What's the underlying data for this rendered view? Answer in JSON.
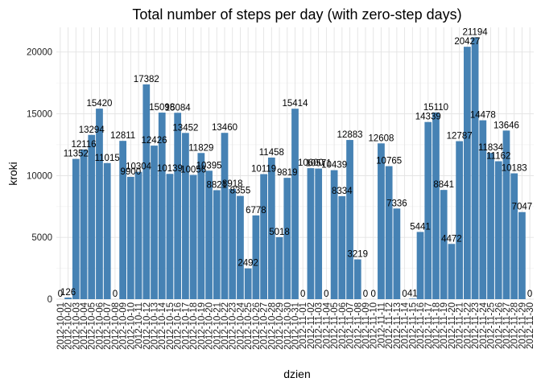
{
  "chart_data": {
    "type": "bar",
    "title": "Total number of steps per day (with zero-step days)",
    "xlabel": "dzien",
    "ylabel": "kroki",
    "ylim": [
      0,
      22000
    ],
    "yticks": [
      0,
      5000,
      10000,
      15000,
      20000
    ],
    "grid": true,
    "bar_color": "#4682b4",
    "categories": [
      "2012-10-01",
      "2012-10-02",
      "2012-10-03",
      "2012-10-04",
      "2012-10-05",
      "2012-10-06",
      "2012-10-07",
      "2012-10-08",
      "2012-10-09",
      "2012-10-10",
      "2012-10-11",
      "2012-10-12",
      "2012-10-13",
      "2012-10-14",
      "2012-10-15",
      "2012-10-16",
      "2012-10-17",
      "2012-10-18",
      "2012-10-19",
      "2012-10-20",
      "2012-10-21",
      "2012-10-22",
      "2012-10-23",
      "2012-10-24",
      "2012-10-25",
      "2012-10-26",
      "2012-10-27",
      "2012-10-28",
      "2012-10-29",
      "2012-10-30",
      "2012-10-31",
      "2012-11-01",
      "2012-11-02",
      "2012-11-03",
      "2012-11-04",
      "2012-11-05",
      "2012-11-06",
      "2012-11-07",
      "2012-11-08",
      "2012-11-09",
      "2012-11-10",
      "2012-11-11",
      "2012-11-12",
      "2012-11-13",
      "2012-11-14",
      "2012-11-15",
      "2012-11-16",
      "2012-11-17",
      "2012-11-18",
      "2012-11-19",
      "2012-11-20",
      "2012-11-21",
      "2012-11-22",
      "2012-11-23",
      "2012-11-24",
      "2012-11-25",
      "2012-11-26",
      "2012-11-27",
      "2012-11-28",
      "2012-11-29",
      "2012-11-30"
    ],
    "values": [
      0,
      126,
      11352,
      12116,
      13294,
      15420,
      11015,
      0,
      12811,
      9900,
      10304,
      17382,
      12426,
      15098,
      10139,
      15084,
      13452,
      10056,
      11829,
      10395,
      8821,
      13460,
      8918,
      8355,
      2492,
      6778,
      10119,
      11458,
      5018,
      9819,
      15414,
      0,
      10600,
      10571,
      0,
      10439,
      8334,
      12883,
      3219,
      0,
      0,
      12608,
      10765,
      7336,
      0,
      41,
      5441,
      14339,
      15110,
      8841,
      4472,
      12787,
      20427,
      21194,
      14478,
      11834,
      11162,
      13646,
      10183,
      7047,
      0
    ],
    "data_labels": [
      "0",
      "126",
      "11352",
      "12116",
      "13294",
      "15420",
      "11015",
      "0",
      "12811",
      "9900",
      "10304",
      "17382",
      "12426",
      "15098",
      "10139",
      "15084",
      "13452",
      "10056",
      "11829",
      "10395",
      "8821",
      "13460",
      "8918",
      "8355",
      "2492",
      "6778",
      "10119",
      "11458",
      "5018",
      "9819",
      "15414",
      "0",
      "10600",
      "10571",
      "0",
      "10439",
      "8334",
      "12883",
      "3219",
      "0",
      "0",
      "12608",
      "10765",
      "7336",
      "0",
      "41",
      "5441",
      "14339",
      "15110",
      "8841",
      "4472",
      "12787",
      "20427",
      "21194",
      "14478",
      "11834",
      "11162",
      "13646",
      "10183",
      "7047",
      "0"
    ]
  }
}
